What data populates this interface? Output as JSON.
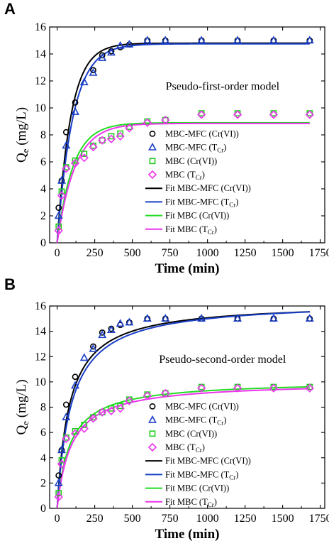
{
  "chart_data": [
    {
      "panel": "A",
      "type": "scatter",
      "annotation": "Pseudo-first-order model",
      "xlabel": "Time (min)",
      "ylabel": "Qe (mg/L)",
      "ylabel_main": "Q",
      "ylabel_sub": "e",
      "ylabel_rest": " (mg/L)",
      "xlim": [
        -50,
        1780
      ],
      "ylim": [
        0,
        16
      ],
      "xticks": [
        0,
        250,
        500,
        750,
        1000,
        1250,
        1500,
        1750
      ],
      "yticks": [
        0,
        2,
        4,
        6,
        8,
        10,
        12,
        14,
        16
      ],
      "grid": false,
      "legend_position": "center-right",
      "series": [
        {
          "name": "MBC-MFC (Cr(VI))",
          "marker": "circle",
          "color": "#000000",
          "x": [
            10,
            30,
            60,
            120,
            240,
            300,
            360,
            420,
            480,
            600,
            720,
            960,
            1200,
            1440,
            1680
          ],
          "y": [
            2.6,
            4.6,
            8.2,
            10.4,
            12.8,
            13.9,
            14.2,
            14.5,
            14.7,
            15.0,
            15.0,
            15.0,
            15.0,
            15.0,
            15.0
          ]
        },
        {
          "name": "MBC-MFC (TCr)",
          "marker": "triangle",
          "color": "#1a3fc8",
          "x": [
            10,
            30,
            60,
            120,
            180,
            240,
            300,
            360,
            420,
            480,
            600,
            720,
            960,
            1200,
            1440,
            1680
          ],
          "y": [
            2.0,
            4.6,
            7.2,
            9.7,
            11.9,
            12.6,
            13.7,
            14.1,
            14.6,
            14.7,
            15.0,
            15.0,
            15.0,
            15.0,
            15.0,
            15.0
          ]
        },
        {
          "name": "MBC (Cr(VI))",
          "marker": "square",
          "color": "#22cc22",
          "x": [
            10,
            30,
            60,
            120,
            180,
            240,
            300,
            360,
            420,
            480,
            600,
            720,
            960,
            1200,
            1440,
            1680
          ],
          "y": [
            1.2,
            3.8,
            5.6,
            6.1,
            6.6,
            7.2,
            7.6,
            7.9,
            8.1,
            8.6,
            9.0,
            9.1,
            9.6,
            9.6,
            9.6,
            9.6
          ]
        },
        {
          "name": "MBC (TCr)",
          "marker": "diamond",
          "color": "#ee33ee",
          "x": [
            10,
            30,
            60,
            120,
            180,
            240,
            300,
            360,
            420,
            480,
            600,
            720,
            960,
            1200,
            1440,
            1680
          ],
          "y": [
            0.9,
            3.5,
            5.5,
            5.9,
            6.3,
            7.1,
            7.6,
            7.7,
            7.9,
            8.5,
            8.9,
            9.1,
            9.5,
            9.5,
            9.5,
            9.5
          ]
        }
      ],
      "fits": [
        {
          "name": "Fit MBC-MFC (Cr(VI))",
          "color": "#000000",
          "model": "pfo",
          "qe": 14.8,
          "k": 0.011
        },
        {
          "name": "Fit MBC-MFC (TCr)",
          "color": "#1a3fc8",
          "model": "pfo",
          "qe": 14.75,
          "k": 0.0095
        },
        {
          "name": "Fit MBC (Cr(VI))",
          "color": "#22dd22",
          "model": "pfo",
          "qe": 8.9,
          "k": 0.0095
        },
        {
          "name": "Fit MBC (TCr)",
          "color": "#ee33ee",
          "model": "pfo",
          "qe": 8.85,
          "k": 0.0085
        }
      ]
    },
    {
      "panel": "B",
      "type": "scatter",
      "annotation": "Pseudo-second-order model",
      "xlabel": "Time (min)",
      "ylabel": "Qe (mg/L)",
      "ylabel_main": "Q",
      "ylabel_sub": "e",
      "ylabel_rest": " (mg/L)",
      "xlim": [
        -50,
        1780
      ],
      "ylim": [
        0,
        16
      ],
      "xticks": [
        0,
        250,
        500,
        750,
        1000,
        1250,
        1500,
        1750
      ],
      "yticks": [
        0,
        2,
        4,
        6,
        8,
        10,
        12,
        14,
        16
      ],
      "grid": false,
      "legend_position": "center-right",
      "series": [
        {
          "name": "MBC-MFC (Cr(VI))",
          "marker": "circle",
          "color": "#000000",
          "x": [
            10,
            30,
            60,
            120,
            240,
            300,
            360,
            420,
            480,
            600,
            720,
            960,
            1200,
            1440,
            1680
          ],
          "y": [
            2.6,
            4.6,
            8.2,
            10.4,
            12.8,
            13.9,
            14.2,
            14.5,
            14.7,
            15.0,
            15.0,
            15.0,
            15.0,
            15.0,
            15.0
          ]
        },
        {
          "name": "MBC-MFC (TCr)",
          "marker": "triangle",
          "color": "#1a3fc8",
          "x": [
            10,
            30,
            60,
            120,
            180,
            240,
            300,
            360,
            420,
            480,
            600,
            720,
            960,
            1200,
            1440,
            1680
          ],
          "y": [
            2.0,
            4.6,
            7.2,
            9.7,
            11.9,
            12.6,
            13.7,
            14.1,
            14.6,
            14.7,
            15.0,
            15.0,
            15.0,
            15.0,
            15.0,
            15.0
          ]
        },
        {
          "name": "MBC (Cr(VI))",
          "marker": "square",
          "color": "#22cc22",
          "x": [
            10,
            30,
            60,
            120,
            180,
            240,
            300,
            360,
            420,
            480,
            600,
            720,
            960,
            1200,
            1440,
            1680
          ],
          "y": [
            1.2,
            3.8,
            5.6,
            6.1,
            6.6,
            7.2,
            7.6,
            7.9,
            8.1,
            8.6,
            9.0,
            9.1,
            9.6,
            9.6,
            9.6,
            9.6
          ]
        },
        {
          "name": "MBC (TCr)",
          "marker": "diamond",
          "color": "#ee33ee",
          "x": [
            10,
            30,
            60,
            120,
            180,
            240,
            300,
            360,
            420,
            480,
            600,
            720,
            960,
            1200,
            1440,
            1680
          ],
          "y": [
            0.9,
            3.5,
            5.5,
            5.9,
            6.3,
            7.1,
            7.6,
            7.7,
            7.9,
            8.5,
            8.9,
            9.1,
            9.5,
            9.5,
            9.5,
            9.5
          ]
        }
      ],
      "fits": [
        {
          "name": "Fit MBC-MFC (Cr(VI))",
          "color": "#000000",
          "model": "pso",
          "qe": 16.3,
          "k": 0.00075
        },
        {
          "name": "Fit MBC-MFC (TCr)",
          "color": "#1a3fc8",
          "model": "pso",
          "qe": 16.4,
          "k": 0.00065
        },
        {
          "name": "Fit MBC (Cr(VI))",
          "color": "#22dd22",
          "model": "pso",
          "qe": 10.1,
          "k": 0.00115
        },
        {
          "name": "Fit MBC (TCr)",
          "color": "#ee33ee",
          "model": "pso",
          "qe": 10.0,
          "k": 0.00105
        }
      ]
    }
  ]
}
